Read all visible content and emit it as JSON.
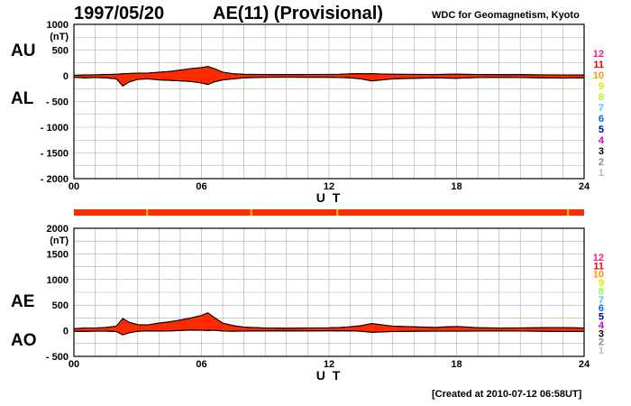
{
  "header": {
    "date": "1997/05/20",
    "title": "AE(11) (Provisional)",
    "source": "WDC for Geomagnetism, Kyoto"
  },
  "footer": {
    "created": "[Created at 2010-07-12 06:58UT]"
  },
  "colors": {
    "fill": "#ff2a00",
    "outline": "#000000",
    "grid": "#aaaaaa"
  },
  "station_legend": [
    {
      "label": "12",
      "color": "#ff1493"
    },
    {
      "label": "11",
      "color": "#ee0000"
    },
    {
      "label": "10",
      "color": "#ff9900"
    },
    {
      "label": "9",
      "color": "#e6e600"
    },
    {
      "label": "8",
      "color": "#99ff33"
    },
    {
      "label": "7",
      "color": "#33ccff"
    },
    {
      "label": "6",
      "color": "#0066ff"
    },
    {
      "label": "5",
      "color": "#0000aa"
    },
    {
      "label": "4",
      "color": "#cc00cc"
    },
    {
      "label": "3",
      "color": "#000000"
    },
    {
      "label": "2",
      "color": "#888888"
    },
    {
      "label": "1",
      "color": "#bbbbbb"
    }
  ],
  "chart_data": [
    {
      "type": "area",
      "panel": "AU/AL",
      "labels_left": [
        "AU",
        "AL"
      ],
      "unit": "(nT)",
      "xlabel": "U T",
      "xlim": [
        0,
        24
      ],
      "ylim": [
        -2000,
        1000
      ],
      "xticks": [
        "00",
        "06",
        "12",
        "18",
        "24"
      ],
      "yticks": [
        1000,
        500,
        0,
        -500,
        -1000,
        -1500,
        -2000
      ],
      "grid": true,
      "series": [
        {
          "name": "AU",
          "x": [
            0,
            0.5,
            1,
            1.5,
            2,
            2.3,
            2.6,
            3,
            3.5,
            4,
            4.5,
            5,
            5.5,
            6,
            6.3,
            6.6,
            7,
            7.5,
            8,
            9,
            10,
            11,
            12,
            12.5,
            13,
            13.5,
            14,
            14.5,
            15,
            16,
            17,
            17.5,
            18,
            19,
            20,
            21,
            22,
            23,
            24
          ],
          "values": [
            10,
            15,
            20,
            25,
            30,
            40,
            45,
            50,
            55,
            70,
            85,
            110,
            140,
            160,
            180,
            140,
            70,
            40,
            30,
            25,
            22,
            25,
            28,
            30,
            38,
            40,
            40,
            35,
            30,
            28,
            25,
            30,
            32,
            25,
            22,
            22,
            20,
            18,
            15
          ]
        },
        {
          "name": "AL",
          "x": [
            0,
            0.5,
            1,
            1.5,
            2,
            2.3,
            2.6,
            3,
            3.5,
            4,
            4.5,
            5,
            5.5,
            6,
            6.3,
            6.6,
            7,
            7.5,
            8,
            9,
            10,
            11,
            12,
            12.5,
            13,
            13.5,
            14,
            14.5,
            15,
            16,
            17,
            17.5,
            18,
            19,
            20,
            21,
            22,
            23,
            24
          ],
          "values": [
            -30,
            -40,
            -35,
            -40,
            -60,
            -200,
            -120,
            -70,
            -60,
            -80,
            -90,
            -100,
            -110,
            -140,
            -170,
            -120,
            -80,
            -60,
            -40,
            -30,
            -28,
            -30,
            -30,
            -35,
            -40,
            -60,
            -100,
            -80,
            -60,
            -50,
            -40,
            -45,
            -50,
            -35,
            -30,
            -35,
            -40,
            -45,
            -40
          ]
        }
      ]
    },
    {
      "type": "area",
      "panel": "AE/AO",
      "labels_left": [
        "AE",
        "AO"
      ],
      "unit": "(nT)",
      "xlabel": "U T",
      "xlim": [
        0,
        24
      ],
      "ylim": [
        -500,
        2000
      ],
      "xticks": [
        "00",
        "06",
        "12",
        "18",
        "24"
      ],
      "yticks": [
        2000,
        1500,
        1000,
        500,
        0,
        -500
      ],
      "grid": true,
      "series": [
        {
          "name": "AE",
          "x": [
            0,
            0.5,
            1,
            1.5,
            2,
            2.3,
            2.6,
            3,
            3.5,
            4,
            4.5,
            5,
            5.5,
            6,
            6.3,
            6.6,
            7,
            7.5,
            8,
            9,
            10,
            11,
            12,
            12.5,
            13,
            13.5,
            14,
            14.5,
            15,
            16,
            17,
            17.5,
            18,
            19,
            20,
            21,
            22,
            23,
            24
          ],
          "values": [
            40,
            55,
            55,
            65,
            90,
            240,
            165,
            120,
            115,
            150,
            175,
            210,
            250,
            300,
            350,
            260,
            150,
            100,
            70,
            55,
            50,
            55,
            58,
            65,
            78,
            100,
            140,
            115,
            90,
            78,
            65,
            75,
            82,
            60,
            52,
            57,
            60,
            63,
            55
          ]
        },
        {
          "name": "AO",
          "x": [
            0,
            0.5,
            1,
            1.5,
            2,
            2.3,
            2.6,
            3,
            3.5,
            4,
            4.5,
            5,
            5.5,
            6,
            6.3,
            6.6,
            7,
            7.5,
            8,
            9,
            10,
            11,
            12,
            12.5,
            13,
            13.5,
            14,
            14.5,
            15,
            16,
            17,
            17.5,
            18,
            19,
            20,
            21,
            22,
            23,
            24
          ],
          "values": [
            -10,
            -12,
            -8,
            -8,
            -15,
            -80,
            -38,
            -10,
            -3,
            -5,
            -3,
            5,
            15,
            10,
            5,
            10,
            -5,
            -10,
            -5,
            -3,
            -3,
            -3,
            -1,
            -3,
            -1,
            -10,
            -30,
            -23,
            -15,
            -11,
            -8,
            -8,
            -9,
            -5,
            -4,
            -7,
            -10,
            -14,
            -13
          ]
        }
      ]
    }
  ]
}
